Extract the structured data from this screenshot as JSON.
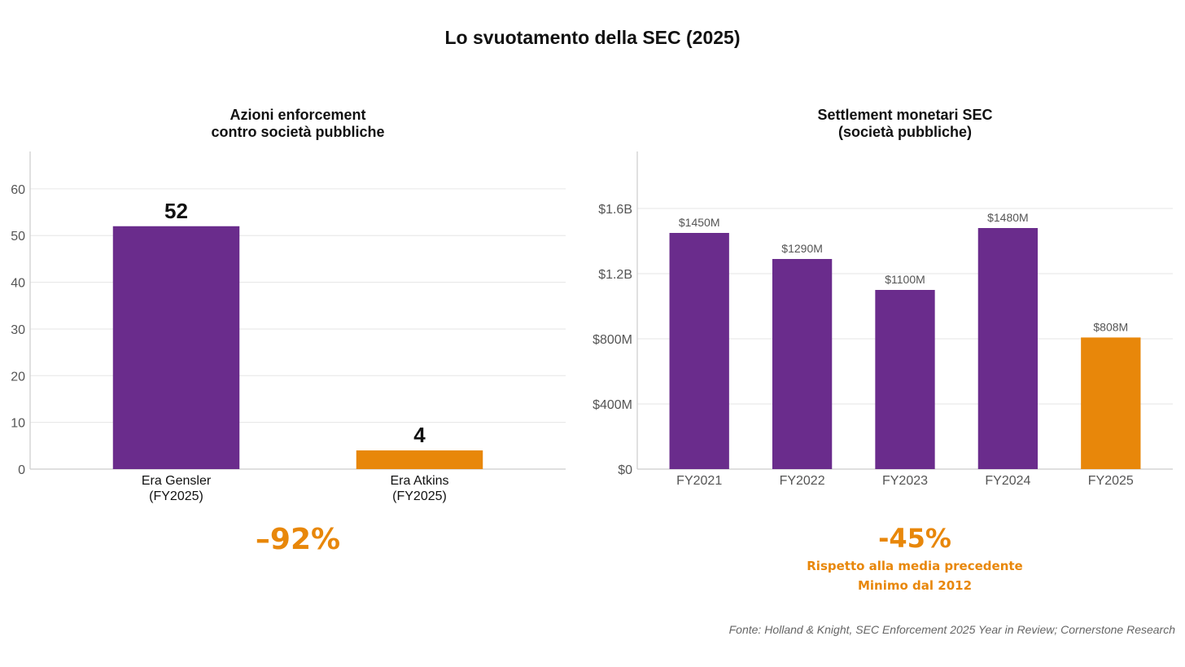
{
  "title": "Lo svuotamento della SEC (2025)",
  "colors": {
    "purple": "#6A2C8C",
    "orange": "#E8870A",
    "grid": "#e6e6e6",
    "axis": "#cccccc"
  },
  "chart_data": [
    {
      "type": "bar",
      "title_lines": [
        "Azioni enforcement",
        "contro società pubbliche"
      ],
      "categories": [
        [
          "Era Gensler",
          "(FY2025)"
        ],
        [
          "Era Atkins",
          "(FY2025)"
        ]
      ],
      "values": [
        52,
        4
      ],
      "data_labels": [
        "52",
        "4"
      ],
      "bar_colors": [
        "purple",
        "orange"
      ],
      "ylim": [
        0,
        68
      ],
      "yticks": [
        0,
        10,
        20,
        30,
        40,
        50,
        60
      ],
      "ytick_labels": [
        "0",
        "10",
        "20",
        "30",
        "40",
        "50",
        "60"
      ],
      "grid": true,
      "callout": "–92%"
    },
    {
      "type": "bar",
      "title_lines": [
        "Settlement monetari SEC",
        "(società pubbliche)"
      ],
      "categories": [
        "FY2021",
        "FY2022",
        "FY2023",
        "FY2024",
        "FY2025"
      ],
      "values": [
        1450,
        1290,
        1100,
        1480,
        808
      ],
      "data_labels": [
        "$1450M",
        "$1290M",
        "$1100M",
        "$1480M",
        "$808M"
      ],
      "bar_colors": [
        "purple",
        "purple",
        "purple",
        "purple",
        "orange"
      ],
      "ylim": [
        0,
        1950
      ],
      "yticks": [
        0,
        400,
        800,
        1200,
        1600
      ],
      "ytick_labels": [
        "$0",
        "$400M",
        "$800M",
        "$1.2B",
        "$1.6B"
      ],
      "grid": true,
      "callout": "-45%",
      "callout_lines": [
        "Rispetto alla media precedente",
        "Minimo dal 2012"
      ]
    }
  ],
  "source": "Fonte: Holland & Knight, SEC Enforcement 2025 Year in Review; Cornerstone Research"
}
